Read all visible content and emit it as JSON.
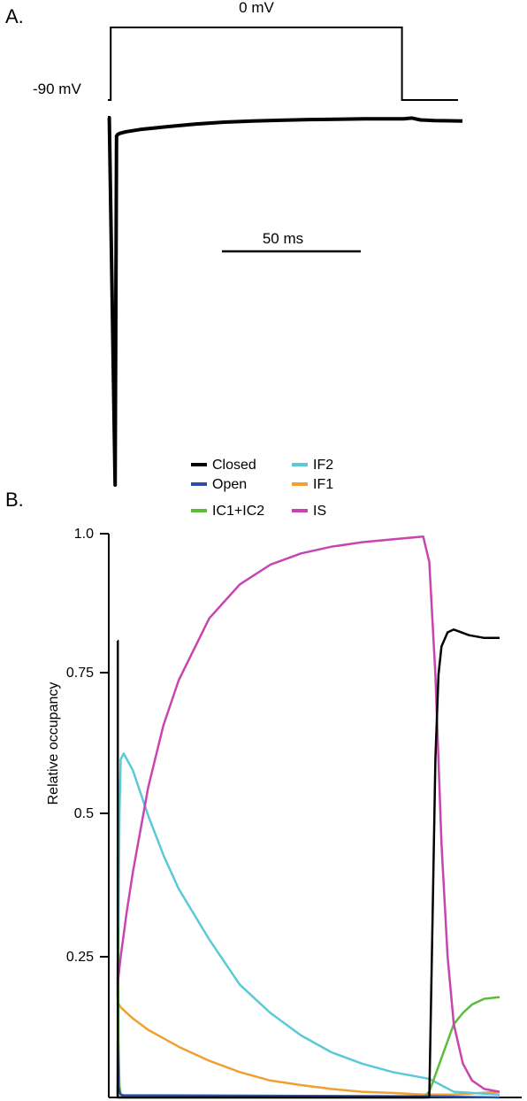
{
  "panel_a": {
    "label": "A.",
    "protocol_top_label": "0 mV",
    "holding_label": "-90 mV",
    "scalebar_label": "50 ms"
  },
  "panel_b": {
    "label": "B."
  },
  "colors": {
    "Closed": "#000000",
    "Open": "#2b4fa6",
    "IC1+IC2": "#5bbd3a",
    "IF2": "#5bc9d6",
    "IF1": "#f0a030",
    "IS": "#c844b0"
  },
  "chart_data": [
    {
      "type": "line",
      "panel": "A",
      "title": "",
      "xlabel": "",
      "ylabel": "",
      "protocol": {
        "name": "",
        "holding_potential_label": "-90 mV",
        "step_potential_label": "0 mV",
        "x_ms": [
          0,
          1,
          1,
          105,
          105,
          125
        ],
        "y_mV": [
          -90,
          -90,
          0,
          0,
          -90,
          -90
        ]
      },
      "current_trace": {
        "name": "",
        "x_ms": [
          0,
          0.5,
          1.0,
          1.5,
          2,
          3,
          5,
          10,
          20,
          30,
          40,
          50,
          60,
          70,
          80,
          90,
          100,
          104,
          107,
          110,
          115,
          125
        ],
        "y_rel": [
          0,
          0,
          -1.0,
          -0.05,
          -0.045,
          -0.042,
          -0.038,
          -0.032,
          -0.024,
          -0.017,
          -0.012,
          -0.009,
          -0.007,
          -0.005,
          -0.004,
          -0.003,
          -0.003,
          -0.003,
          -0.001,
          -0.006,
          -0.008,
          -0.009
        ]
      },
      "scale_bar": {
        "label": "50 ms",
        "length_ms": 50
      }
    },
    {
      "type": "line",
      "panel": "B",
      "title": "",
      "xlabel": "",
      "ylabel": "Relative occupancy",
      "ylim": [
        0,
        1.0
      ],
      "yticks": [
        0.25,
        0.5,
        0.75,
        1.0
      ],
      "ytick_labels": [
        "0.25",
        "0.5",
        "0.75",
        "1.0"
      ],
      "legend": [
        "Closed",
        "Open",
        "IC1+IC2",
        "IF2",
        "IF1",
        "IS"
      ],
      "legend_position": "top-center",
      "series": [
        {
          "name": "Closed",
          "x": [
            0,
            0.05,
            0.05,
            1,
            2,
            100,
            102,
            103,
            104,
            105,
            106,
            108,
            110,
            115,
            120,
            125
          ],
          "y": [
            0.81,
            0.81,
            0.0,
            0.0,
            0.0,
            0.0,
            0.0,
            0.3,
            0.6,
            0.75,
            0.8,
            0.825,
            0.83,
            0.82,
            0.815,
            0.815
          ]
        },
        {
          "name": "Open",
          "x": [
            0,
            0.05,
            0.3,
            0.6,
            1,
            2,
            100,
            125
          ],
          "y": [
            0.0,
            0.1,
            0.02,
            0.01,
            0.005,
            0.004,
            0.002,
            0.0
          ]
        },
        {
          "name": "IC1+IC2",
          "x": [
            0,
            0.15,
            0.3,
            0.6,
            1,
            2,
            100,
            102,
            104,
            106,
            108,
            110,
            113,
            116,
            120,
            125
          ],
          "y": [
            0.18,
            0.31,
            0.1,
            0.02,
            0.005,
            0.0,
            0.0,
            0.01,
            0.04,
            0.07,
            0.1,
            0.13,
            0.15,
            0.165,
            0.175,
            0.178
          ]
        },
        {
          "name": "IF2",
          "x": [
            0,
            0.3,
            0.6,
            1,
            2,
            5,
            10,
            15,
            20,
            30,
            40,
            50,
            60,
            70,
            80,
            90,
            100,
            102,
            110,
            125
          ],
          "y": [
            0.0,
            0.3,
            0.5,
            0.6,
            0.61,
            0.58,
            0.5,
            0.43,
            0.37,
            0.28,
            0.2,
            0.15,
            0.11,
            0.08,
            0.06,
            0.045,
            0.035,
            0.033,
            0.01,
            0.005
          ]
        },
        {
          "name": "IF1",
          "x": [
            0,
            0.5,
            1,
            2,
            5,
            10,
            20,
            30,
            40,
            50,
            60,
            70,
            80,
            90,
            100,
            102,
            110,
            125
          ],
          "y": [
            0.16,
            0.165,
            0.16,
            0.155,
            0.14,
            0.12,
            0.09,
            0.065,
            0.045,
            0.03,
            0.022,
            0.015,
            0.01,
            0.008,
            0.005,
            0.005,
            0.005,
            0.01
          ]
        },
        {
          "name": "IS",
          "x": [
            0,
            1,
            3,
            5,
            10,
            15,
            20,
            30,
            40,
            50,
            60,
            70,
            80,
            90,
            100,
            102,
            104,
            106,
            108,
            110,
            113,
            116,
            120,
            125
          ],
          "y": [
            0.2,
            0.25,
            0.33,
            0.4,
            0.55,
            0.66,
            0.74,
            0.85,
            0.91,
            0.945,
            0.965,
            0.977,
            0.985,
            0.99,
            0.995,
            0.95,
            0.75,
            0.45,
            0.25,
            0.13,
            0.06,
            0.03,
            0.015,
            0.01
          ]
        }
      ]
    }
  ]
}
